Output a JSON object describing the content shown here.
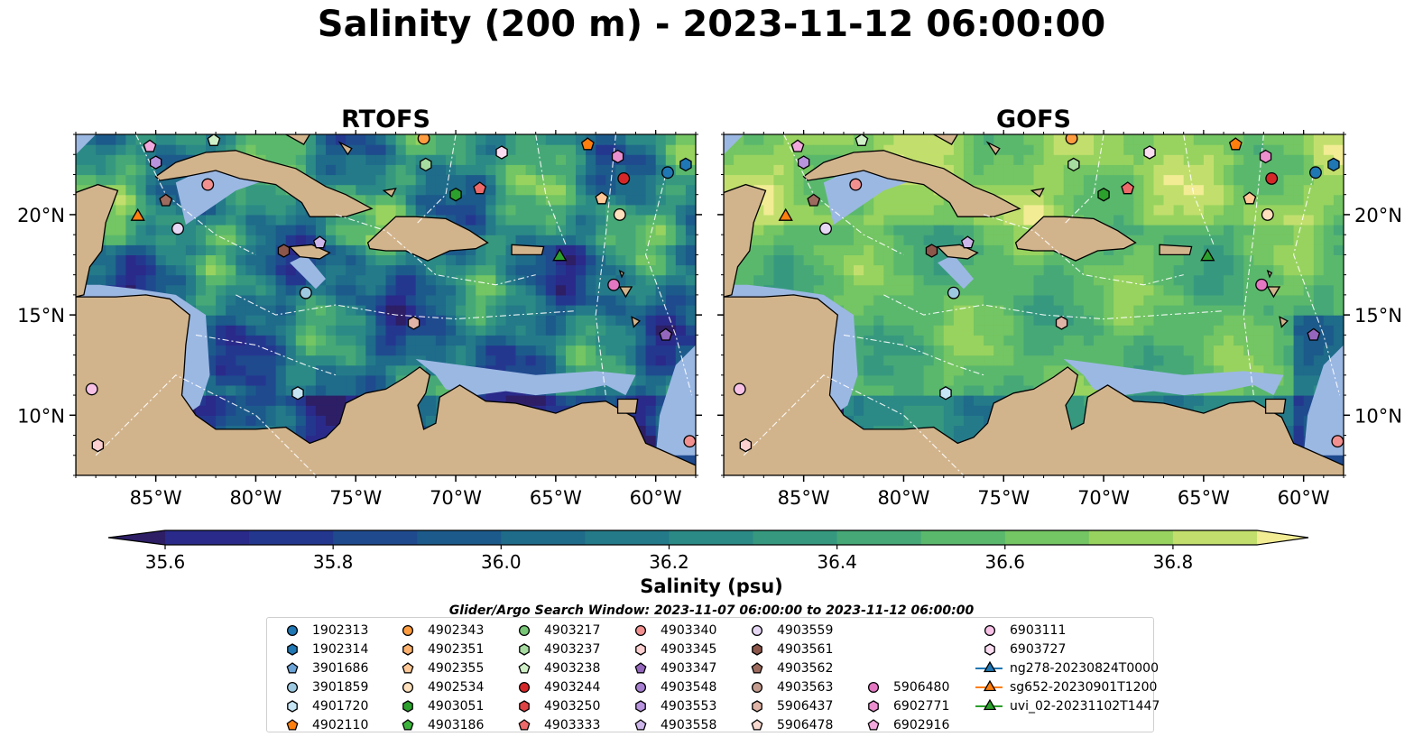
{
  "title": "Salinity (200 m) - 2023-11-12 06:00:00",
  "panels": [
    {
      "title": "RTOFS"
    },
    {
      "title": "GOFS"
    }
  ],
  "map_extent": {
    "lon_min": -89,
    "lon_max": -58,
    "lat_min": 7,
    "lat_max": 24
  },
  "lon_ticks": [
    "85°W",
    "80°W",
    "75°W",
    "70°W",
    "65°W",
    "60°W"
  ],
  "lat_ticks": [
    "20°N",
    "15°N",
    "10°N"
  ],
  "colorbar": {
    "label": "Salinity (psu)",
    "min": 35.5,
    "max": 36.9,
    "step": 0.1,
    "tick_labels": [
      "35.6",
      "35.8",
      "36.0",
      "36.2",
      "36.4",
      "36.6",
      "36.8"
    ],
    "extend": "both",
    "colors": [
      "#2d1e66",
      "#2a2a8a",
      "#24378f",
      "#1f4a8e",
      "#1c5a8b",
      "#1f6b8a",
      "#247a89",
      "#2b8a86",
      "#36997f",
      "#46a877",
      "#5ab86d",
      "#74c563",
      "#98d35f",
      "#c2df6d",
      "#f2ec94"
    ]
  },
  "land_color": "#d2b48c",
  "shelf_color": "#9bb8e3",
  "search_window": "Glider/Argo Search Window: 2023-11-07 06:00:00 to 2023-11-12 06:00:00",
  "legend": [
    {
      "label": "1902313",
      "marker": "circle",
      "color": "#1f77b4"
    },
    {
      "label": "1902314",
      "marker": "hexagon",
      "color": "#1f77b4"
    },
    {
      "label": "3901686",
      "marker": "pentagon",
      "color": "#6ba3d6"
    },
    {
      "label": "3901859",
      "marker": "circle",
      "color": "#9ecae1"
    },
    {
      "label": "4901720",
      "marker": "hexagon",
      "color": "#c6e5f5"
    },
    {
      "label": "4902110",
      "marker": "pentagon",
      "color": "#ff7f0e"
    },
    {
      "label": "4902343",
      "marker": "circle",
      "color": "#ff9c3f"
    },
    {
      "label": "4902351",
      "marker": "hexagon",
      "color": "#ffb26e"
    },
    {
      "label": "4902355",
      "marker": "pentagon",
      "color": "#ffc896"
    },
    {
      "label": "4902534",
      "marker": "circle",
      "color": "#ffe0bd"
    },
    {
      "label": "4903051",
      "marker": "hexagon",
      "color": "#2ca02c"
    },
    {
      "label": "4903186",
      "marker": "pentagon",
      "color": "#3cb43c"
    },
    {
      "label": "4903217",
      "marker": "circle",
      "color": "#77c777"
    },
    {
      "label": "4903237",
      "marker": "hexagon",
      "color": "#a6dca0"
    },
    {
      "label": "4903238",
      "marker": "pentagon",
      "color": "#d0f0c8"
    },
    {
      "label": "4903244",
      "marker": "circle",
      "color": "#d62728"
    },
    {
      "label": "4903250",
      "marker": "hexagon",
      "color": "#e04344"
    },
    {
      "label": "4903333",
      "marker": "pentagon",
      "color": "#ee6a6a"
    },
    {
      "label": "4903340",
      "marker": "circle",
      "color": "#f29090"
    },
    {
      "label": "4903345",
      "marker": "hexagon",
      "color": "#fcd0d0"
    },
    {
      "label": "4903347",
      "marker": "pentagon",
      "color": "#9467bd"
    },
    {
      "label": "4903548",
      "marker": "circle",
      "color": "#a67fd0"
    },
    {
      "label": "4903553",
      "marker": "hexagon",
      "color": "#b893de"
    },
    {
      "label": "4903558",
      "marker": "pentagon",
      "color": "#cdb6ea"
    },
    {
      "label": "4903559",
      "marker": "circle",
      "color": "#e6d8f5"
    },
    {
      "label": "4903561",
      "marker": "hexagon",
      "color": "#8c564b"
    },
    {
      "label": "4903562",
      "marker": "pentagon",
      "color": "#9e6b5f"
    },
    {
      "label": "4903563",
      "marker": "circle",
      "color": "#c49c8f"
    },
    {
      "label": "5906437",
      "marker": "hexagon",
      "color": "#e0b4a6"
    },
    {
      "label": "5906478",
      "marker": "pentagon",
      "color": "#f8d9cf"
    },
    {
      "label": "5906480",
      "marker": "circle",
      "color": "#e377c2"
    },
    {
      "label": "6902771",
      "marker": "hexagon",
      "color": "#eb8fcf"
    },
    {
      "label": "6902916",
      "marker": "pentagon",
      "color": "#f2a8dc"
    },
    {
      "label": "6903111",
      "marker": "circle",
      "color": "#f7c1e6"
    },
    {
      "label": "6903727",
      "marker": "hexagon",
      "color": "#fbdcf1"
    },
    {
      "label": "ng278-20230824T0000",
      "marker": "triangle",
      "color": "#1f77b4"
    },
    {
      "label": "sg652-20230901T1200",
      "marker": "triangle",
      "color": "#ff7f0e"
    },
    {
      "label": "uvi_02-20231102T1447",
      "marker": "triangle",
      "color": "#2ca02c"
    }
  ],
  "observations": [
    {
      "id": "1902313",
      "lon": -59.4,
      "lat": 22.1
    },
    {
      "id": "1902314",
      "lon": -58.5,
      "lat": 22.5
    },
    {
      "id": "3901859",
      "lon": -77.5,
      "lat": 16.1
    },
    {
      "id": "4901720",
      "lon": -77.9,
      "lat": 11.1
    },
    {
      "id": "4902110",
      "lon": -63.4,
      "lat": 23.5
    },
    {
      "id": "4902343",
      "lon": -71.6,
      "lat": 23.8
    },
    {
      "id": "4902355",
      "lon": -62.7,
      "lat": 20.8
    },
    {
      "id": "4902534",
      "lon": -61.8,
      "lat": 20.0
    },
    {
      "id": "4903051",
      "lon": -70.0,
      "lat": 21.0
    },
    {
      "id": "4903238",
      "lon": -82.1,
      "lat": 23.7
    },
    {
      "id": "4903244",
      "lon": -61.6,
      "lat": 21.8
    },
    {
      "id": "4903333",
      "lon": -68.8,
      "lat": 21.3
    },
    {
      "id": "4903340",
      "lon": -82.4,
      "lat": 21.5
    },
    {
      "id": "4903345",
      "lon": -87.9,
      "lat": 8.5
    },
    {
      "id": "4903347",
      "lon": -59.5,
      "lat": 14.0
    },
    {
      "id": "4903553",
      "lon": -85.0,
      "lat": 22.6
    },
    {
      "id": "4903558",
      "lon": -76.8,
      "lat": 18.6
    },
    {
      "id": "4903559",
      "lon": -83.9,
      "lat": 19.3
    },
    {
      "id": "4903561",
      "lon": -78.6,
      "lat": 18.2
    },
    {
      "id": "4903562",
      "lon": -84.5,
      "lat": 20.7
    },
    {
      "id": "5906437",
      "lon": -72.1,
      "lat": 14.6
    },
    {
      "id": "5906480",
      "lon": -62.1,
      "lat": 16.5
    },
    {
      "id": "6902771",
      "lon": -61.9,
      "lat": 22.9
    },
    {
      "id": "6902916",
      "lon": -85.3,
      "lat": 23.4
    },
    {
      "id": "6903111",
      "lon": -88.2,
      "lat": 11.3
    },
    {
      "id": "6903727",
      "lon": -67.7,
      "lat": 23.1
    },
    {
      "id": "4903340",
      "lon": -58.3,
      "lat": 8.7
    },
    {
      "id": "4903237",
      "lon": -71.5,
      "lat": 22.5
    },
    {
      "id": "sg652-20230901T1200",
      "lon": -85.9,
      "lat": 19.9
    },
    {
      "id": "uvi_02-20231102T1447",
      "lon": -64.8,
      "lat": 17.9
    }
  ]
}
